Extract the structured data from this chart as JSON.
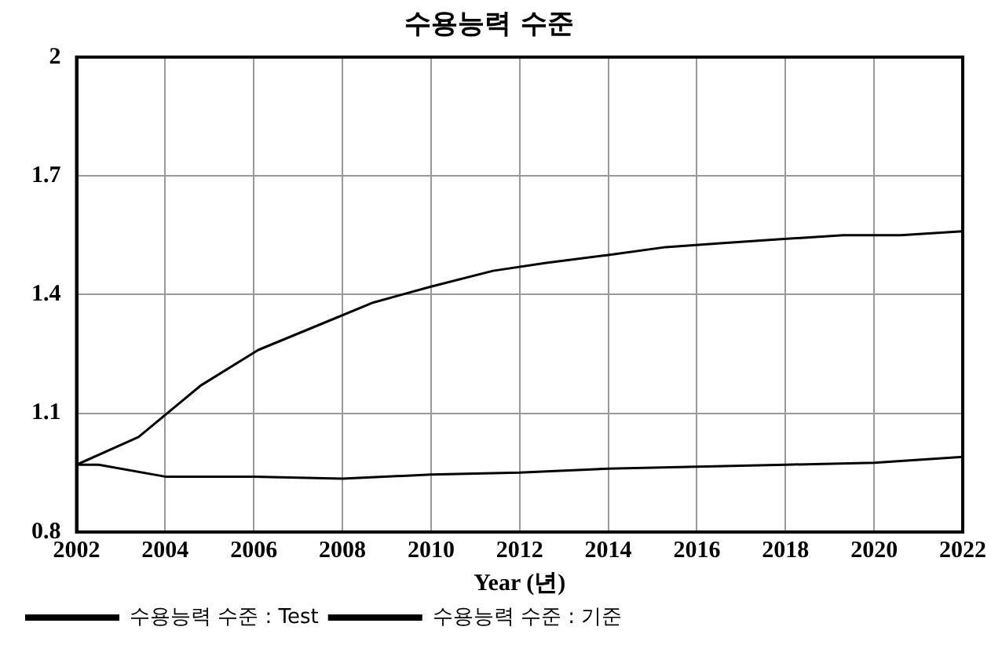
{
  "chart_data": {
    "type": "line",
    "title": "수용능력 수준",
    "xlabel": "Year (년)",
    "xlim": [
      2002,
      2022
    ],
    "xticks": [
      2002,
      2004,
      2006,
      2008,
      2010,
      2012,
      2014,
      2016,
      2018,
      2020,
      2022
    ],
    "ylim": [
      0.8,
      2
    ],
    "yticks": [
      0.8,
      1.1,
      1.4,
      1.7,
      2
    ],
    "grid": true,
    "legend": "bottom",
    "marker": "none",
    "line_style": "solid",
    "series": [
      {
        "name": "수용능력 수준 : Test",
        "color": "#000000",
        "x": [
          2002,
          2003.4,
          2004.8,
          2006.1,
          2007.4,
          2008.7,
          2010,
          2011.4,
          2012.6,
          2014,
          2015.3,
          2016.6,
          2017.9,
          2019.3,
          2020.6,
          2022
        ],
        "values": [
          0.97,
          1.04,
          1.17,
          1.26,
          1.32,
          1.38,
          1.42,
          1.46,
          1.48,
          1.5,
          1.52,
          1.53,
          1.54,
          1.55,
          1.55,
          1.56
        ]
      },
      {
        "name": "수용능력 수준 : 기준",
        "color": "#000000",
        "x": [
          2002,
          2002.5,
          2004,
          2006,
          2008,
          2010,
          2012,
          2014,
          2016,
          2018,
          2020,
          2022
        ],
        "values": [
          0.97,
          0.97,
          0.94,
          0.94,
          0.935,
          0.945,
          0.95,
          0.96,
          0.965,
          0.97,
          0.975,
          0.99
        ]
      }
    ]
  }
}
